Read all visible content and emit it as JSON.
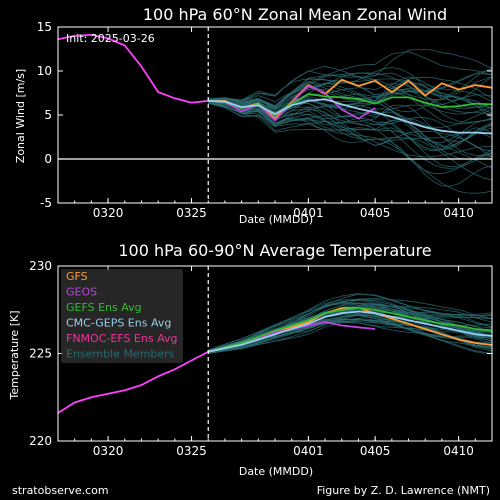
{
  "footer": {
    "left": "stratobserve.com",
    "right": "Figure by Z. D. Lawrence (NMT)"
  },
  "chart_data": [
    {
      "type": "line",
      "title": "100 hPa  60°N   Zonal Mean Zonal Wind",
      "annotation": "Init: 2025-03-26",
      "xlabel": "Date (MMDD)",
      "ylabel": "Zonal  Wind   [m/s]",
      "xlim": [
        "2025-03-17",
        "2025-04-12"
      ],
      "ylim": [
        -5,
        15
      ],
      "x_ticks": [
        {
          "date": "2025-03-20",
          "label": "0320"
        },
        {
          "date": "2025-03-25",
          "label": "0325"
        },
        {
          "date": "2025-04-01",
          "label": "0401"
        },
        {
          "date": "2025-04-05",
          "label": "0405"
        },
        {
          "date": "2025-04-10",
          "label": "0410"
        }
      ],
      "y_ticks": [
        -5,
        0,
        5,
        10,
        15
      ],
      "init_date": "2025-03-26",
      "zero_line": true,
      "observed": {
        "color": "#ff40ff",
        "points": [
          [
            "2025-03-17",
            13.6
          ],
          [
            "2025-03-18",
            14.0
          ],
          [
            "2025-03-19",
            14.1
          ],
          [
            "2025-03-20",
            13.7
          ],
          [
            "2025-03-21",
            12.9
          ],
          [
            "2025-03-22",
            10.5
          ],
          [
            "2025-03-23",
            7.6
          ],
          [
            "2025-03-24",
            6.9
          ],
          [
            "2025-03-25",
            6.4
          ],
          [
            "2025-03-26",
            6.6
          ]
        ]
      },
      "series": [
        {
          "name": "GFS",
          "color": "#ff9933",
          "points": [
            [
              "2025-03-26",
              6.6
            ],
            [
              "2025-03-27",
              6.6
            ],
            [
              "2025-03-28",
              5.8
            ],
            [
              "2025-03-29",
              6.3
            ],
            [
              "2025-03-30",
              4.6
            ],
            [
              "2025-03-31",
              6.5
            ],
            [
              "2025-04-01",
              8.4
            ],
            [
              "2025-04-02",
              7.4
            ],
            [
              "2025-04-03",
              9.0
            ],
            [
              "2025-04-04",
              8.3
            ],
            [
              "2025-04-05",
              8.9
            ],
            [
              "2025-04-06",
              7.6
            ],
            [
              "2025-04-07",
              8.9
            ],
            [
              "2025-04-08",
              7.2
            ],
            [
              "2025-04-09",
              8.6
            ],
            [
              "2025-04-10",
              7.9
            ],
            [
              "2025-04-11",
              8.4
            ],
            [
              "2025-04-12",
              8.1
            ]
          ]
        },
        {
          "name": "GEOS",
          "color": "#bb44dd",
          "points": [
            [
              "2025-03-26",
              6.6
            ],
            [
              "2025-03-27",
              6.5
            ],
            [
              "2025-03-28",
              5.4
            ],
            [
              "2025-03-29",
              6.2
            ],
            [
              "2025-03-30",
              4.4
            ],
            [
              "2025-03-31",
              6.4
            ],
            [
              "2025-04-01",
              8.3
            ],
            [
              "2025-04-02",
              7.5
            ],
            [
              "2025-04-03",
              5.6
            ],
            [
              "2025-04-04",
              4.6
            ],
            [
              "2025-04-05",
              5.8
            ]
          ]
        },
        {
          "name": "GEFS Ens Avg",
          "color": "#33bb33",
          "points": [
            [
              "2025-03-26",
              6.6
            ],
            [
              "2025-03-27",
              6.5
            ],
            [
              "2025-03-28",
              5.8
            ],
            [
              "2025-03-29",
              6.2
            ],
            [
              "2025-03-30",
              5.0
            ],
            [
              "2025-03-31",
              6.3
            ],
            [
              "2025-04-01",
              7.4
            ],
            [
              "2025-04-02",
              7.1
            ],
            [
              "2025-04-03",
              7.0
            ],
            [
              "2025-04-04",
              6.8
            ],
            [
              "2025-04-05",
              6.3
            ],
            [
              "2025-04-06",
              7.0
            ],
            [
              "2025-04-07",
              7.0
            ],
            [
              "2025-04-08",
              6.4
            ],
            [
              "2025-04-09",
              5.9
            ],
            [
              "2025-04-10",
              6.0
            ],
            [
              "2025-04-11",
              6.3
            ],
            [
              "2025-04-12",
              6.2
            ]
          ]
        },
        {
          "name": "CMC-GEPS Ens Avg",
          "color": "#99ccee",
          "points": [
            [
              "2025-03-26",
              6.6
            ],
            [
              "2025-03-27",
              6.5
            ],
            [
              "2025-03-28",
              5.9
            ],
            [
              "2025-03-29",
              6.1
            ],
            [
              "2025-03-30",
              5.1
            ],
            [
              "2025-03-31",
              6.1
            ],
            [
              "2025-04-01",
              6.6
            ],
            [
              "2025-04-02",
              6.8
            ],
            [
              "2025-04-03",
              6.2
            ],
            [
              "2025-04-04",
              5.7
            ],
            [
              "2025-04-05",
              5.3
            ],
            [
              "2025-04-06",
              4.8
            ],
            [
              "2025-04-07",
              4.2
            ],
            [
              "2025-04-08",
              3.6
            ],
            [
              "2025-04-09",
              3.2
            ],
            [
              "2025-04-10",
              3.0
            ],
            [
              "2025-04-11",
              3.0
            ],
            [
              "2025-04-12",
              2.9
            ]
          ]
        },
        {
          "name": "FNMOC-EFS Ens Avg",
          "color": "#ee3399",
          "points": []
        }
      ],
      "ensemble": {
        "name": "Ensemble Members",
        "color": "#2a6a6e",
        "spread": [
          [
            "2025-03-26",
            0.3
          ],
          [
            "2025-03-28",
            1.0
          ],
          [
            "2025-03-31",
            2.5
          ],
          [
            "2025-04-03",
            4.0
          ],
          [
            "2025-04-07",
            5.5
          ],
          [
            "2025-04-12",
            6.5
          ]
        ]
      }
    },
    {
      "type": "line",
      "title": "100 hPa  60-90°N Average Temperature",
      "xlabel": "Date (MMDD)",
      "ylabel": "Temperature   [K]",
      "xlim": [
        "2025-03-17",
        "2025-04-12"
      ],
      "ylim": [
        220,
        230
      ],
      "x_ticks": [
        {
          "date": "2025-03-20",
          "label": "0320"
        },
        {
          "date": "2025-03-25",
          "label": "0325"
        },
        {
          "date": "2025-04-01",
          "label": "0401"
        },
        {
          "date": "2025-04-05",
          "label": "0405"
        },
        {
          "date": "2025-04-10",
          "label": "0410"
        }
      ],
      "y_ticks": [
        220,
        225,
        230
      ],
      "init_date": "2025-03-26",
      "legend_position": "top-left",
      "legend": [
        {
          "label": "GFS",
          "color": "#ff9933"
        },
        {
          "label": "GEOS",
          "color": "#bb44dd"
        },
        {
          "label": "GEFS Ens Avg",
          "color": "#33bb33"
        },
        {
          "label": "CMC-GEPS Ens Avg",
          "color": "#99ccee"
        },
        {
          "label": "FNMOC-EFS Ens Avg",
          "color": "#ee3399"
        },
        {
          "label": "Ensemble Members",
          "color": "#2a6a6e"
        }
      ],
      "observed": {
        "color": "#ff40ff",
        "points": [
          [
            "2025-03-17",
            221.6
          ],
          [
            "2025-03-18",
            222.2
          ],
          [
            "2025-03-19",
            222.5
          ],
          [
            "2025-03-20",
            222.7
          ],
          [
            "2025-03-21",
            222.9
          ],
          [
            "2025-03-22",
            223.2
          ],
          [
            "2025-03-23",
            223.7
          ],
          [
            "2025-03-24",
            224.1
          ],
          [
            "2025-03-25",
            224.6
          ],
          [
            "2025-03-26",
            225.1
          ]
        ]
      },
      "series": [
        {
          "name": "GFS",
          "color": "#ff9933",
          "points": [
            [
              "2025-03-26",
              225.1
            ],
            [
              "2025-03-28",
              225.6
            ],
            [
              "2025-03-30",
              226.2
            ],
            [
              "2025-04-01",
              226.8
            ],
            [
              "2025-04-02",
              227.3
            ],
            [
              "2025-04-03",
              227.6
            ],
            [
              "2025-04-04",
              227.6
            ],
            [
              "2025-04-05",
              227.3
            ],
            [
              "2025-04-06",
              227.0
            ],
            [
              "2025-04-07",
              226.7
            ],
            [
              "2025-04-08",
              226.4
            ],
            [
              "2025-04-09",
              226.1
            ],
            [
              "2025-04-10",
              225.8
            ],
            [
              "2025-04-11",
              225.6
            ],
            [
              "2025-04-12",
              225.5
            ]
          ]
        },
        {
          "name": "GEOS",
          "color": "#bb44dd",
          "points": [
            [
              "2025-03-26",
              225.1
            ],
            [
              "2025-03-28",
              225.6
            ],
            [
              "2025-03-30",
              226.2
            ],
            [
              "2025-04-01",
              226.6
            ],
            [
              "2025-04-02",
              226.8
            ],
            [
              "2025-04-03",
              226.6
            ],
            [
              "2025-04-04",
              226.5
            ],
            [
              "2025-04-05",
              226.4
            ]
          ]
        },
        {
          "name": "GEFS Ens Avg",
          "color": "#33bb33",
          "points": [
            [
              "2025-03-26",
              225.1
            ],
            [
              "2025-03-28",
              225.6
            ],
            [
              "2025-03-30",
              226.3
            ],
            [
              "2025-04-01",
              226.9
            ],
            [
              "2025-04-02",
              227.3
            ],
            [
              "2025-04-03",
              227.5
            ],
            [
              "2025-04-04",
              227.6
            ],
            [
              "2025-04-05",
              227.5
            ],
            [
              "2025-04-06",
              227.3
            ],
            [
              "2025-04-07",
              227.1
            ],
            [
              "2025-04-08",
              226.9
            ],
            [
              "2025-04-09",
              226.7
            ],
            [
              "2025-04-10",
              226.6
            ],
            [
              "2025-04-11",
              226.4
            ],
            [
              "2025-04-12",
              226.3
            ]
          ]
        },
        {
          "name": "CMC-GEPS Ens Avg",
          "color": "#99ccee",
          "points": [
            [
              "2025-03-26",
              225.1
            ],
            [
              "2025-03-28",
              225.5
            ],
            [
              "2025-03-30",
              226.1
            ],
            [
              "2025-04-01",
              226.7
            ],
            [
              "2025-04-02",
              227.1
            ],
            [
              "2025-04-03",
              227.3
            ],
            [
              "2025-04-04",
              227.4
            ],
            [
              "2025-04-05",
              227.3
            ],
            [
              "2025-04-06",
              227.1
            ],
            [
              "2025-04-07",
              226.9
            ],
            [
              "2025-04-08",
              226.7
            ],
            [
              "2025-04-09",
              226.5
            ],
            [
              "2025-04-10",
              226.3
            ],
            [
              "2025-04-11",
              226.1
            ],
            [
              "2025-04-12",
              226.0
            ]
          ]
        }
      ],
      "ensemble": {
        "name": "Ensemble Members",
        "color": "#2a6a6e",
        "spread": [
          [
            "2025-03-26",
            0.1
          ],
          [
            "2025-03-29",
            0.3
          ],
          [
            "2025-04-01",
            0.6
          ],
          [
            "2025-04-05",
            0.8
          ],
          [
            "2025-04-12",
            1.0
          ]
        ]
      }
    }
  ]
}
